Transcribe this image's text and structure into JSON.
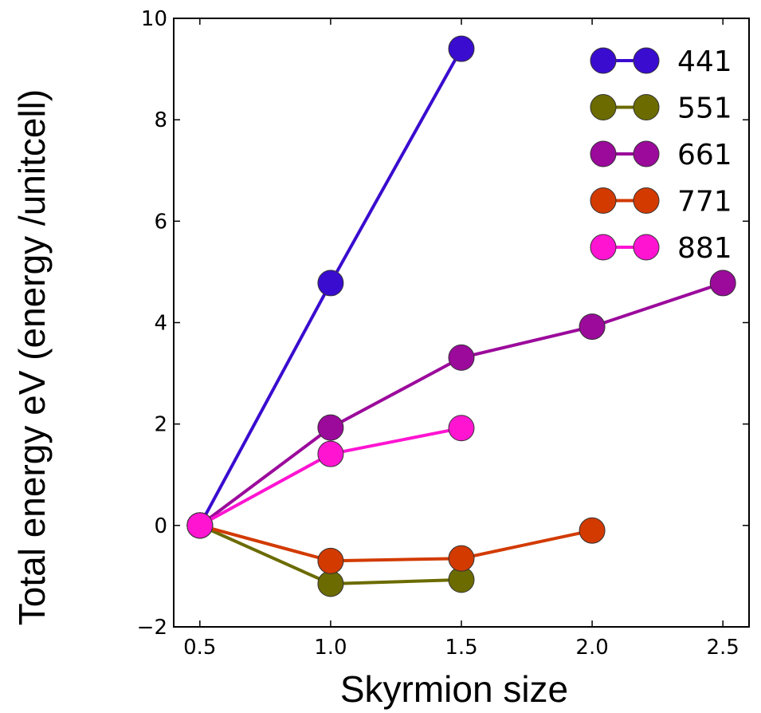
{
  "chart_data": {
    "type": "line",
    "xlabel": "Skyrmion size",
    "ylabel": "Total energy eV (energy /unitcell)",
    "xlim": [
      0.4,
      2.6
    ],
    "ylim": [
      -2,
      10
    ],
    "x_ticks": [
      0.5,
      1.0,
      1.5,
      2.0,
      2.5
    ],
    "x_tick_labels": [
      "0.5",
      "1.0",
      "1.5",
      "2.0",
      "2.5"
    ],
    "y_ticks": [
      -2,
      0,
      2,
      4,
      6,
      8,
      10
    ],
    "y_tick_labels": [
      "−2",
      "0",
      "2",
      "4",
      "6",
      "8",
      "10"
    ],
    "grid": false,
    "legend_position": "top-right",
    "series": [
      {
        "name": "441",
        "color": "#3a0ccf",
        "x": [
          0.5,
          1.0,
          1.5
        ],
        "y": [
          0.0,
          4.78,
          9.4
        ]
      },
      {
        "name": "551",
        "color": "#6b6b00",
        "x": [
          0.5,
          1.0,
          1.5
        ],
        "y": [
          0.0,
          -1.15,
          -1.07
        ]
      },
      {
        "name": "661",
        "color": "#9b0a9b",
        "x": [
          0.5,
          1.0,
          1.5,
          2.0,
          2.5
        ],
        "y": [
          0.0,
          1.93,
          3.31,
          3.92,
          4.78
        ]
      },
      {
        "name": "771",
        "color": "#d23a00",
        "x": [
          0.5,
          1.0,
          1.5,
          2.0
        ],
        "y": [
          0.0,
          -0.7,
          -0.65,
          -0.1
        ]
      },
      {
        "name": "881",
        "color": "#ff14d2",
        "x": [
          0.5,
          1.0,
          1.5
        ],
        "y": [
          0.0,
          1.41,
          1.92
        ]
      }
    ]
  }
}
